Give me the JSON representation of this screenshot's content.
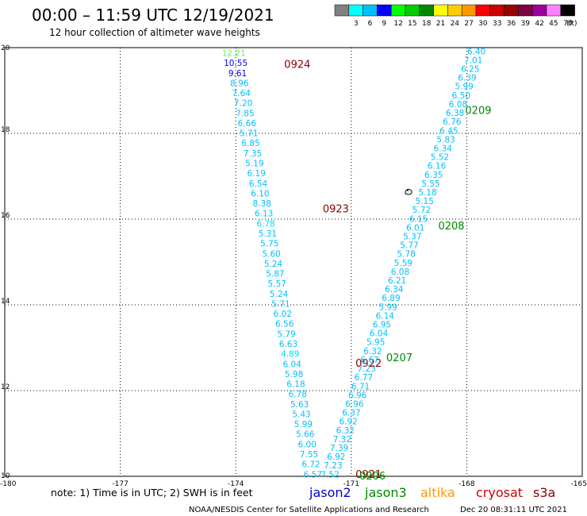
{
  "title": "00:00 – 11:59 UTC 12/19/2021",
  "subtitle": "12 hour collection of altimeter wave heights",
  "legend": {
    "unit": "(ft)",
    "bins": [
      {
        "label": "",
        "color": "#808080"
      },
      {
        "label": "3",
        "color": "#00ffff"
      },
      {
        "label": "6",
        "color": "#00c0ff"
      },
      {
        "label": "9",
        "color": "#0000ff"
      },
      {
        "label": "12",
        "color": "#00ff00"
      },
      {
        "label": "15",
        "color": "#00cc00"
      },
      {
        "label": "18",
        "color": "#008800"
      },
      {
        "label": "21",
        "color": "#ffff00"
      },
      {
        "label": "24",
        "color": "#ffcc00"
      },
      {
        "label": "27",
        "color": "#ff9900"
      },
      {
        "label": "30",
        "color": "#ff0000"
      },
      {
        "label": "33",
        "color": "#cc0000"
      },
      {
        "label": "36",
        "color": "#990000"
      },
      {
        "label": "39",
        "color": "#800040"
      },
      {
        "label": "42",
        "color": "#a000a0"
      },
      {
        "label": "45",
        "color": "#ff80ff"
      },
      {
        "label": "70",
        "color": "#000000"
      }
    ]
  },
  "footer": {
    "note": "note:  1) Time is in UTC;  2) SWH is in feet",
    "satellites": [
      {
        "name": "jason2",
        "color": "#0000cc"
      },
      {
        "name": "jason3",
        "color": "#008800"
      },
      {
        "name": "altika",
        "color": "#ff9900"
      },
      {
        "name": "cryosat",
        "color": "#cc0000"
      },
      {
        "name": "s3a",
        "color": "#880000"
      }
    ],
    "credit": "NOAA/NESDIS Center for Satellite Applications and Research",
    "timestamp": "Dec 20 08:31:11 UTC 2021"
  },
  "chart_data": {
    "type": "scatter",
    "xlim": [
      -180,
      -165
    ],
    "ylim": [
      10,
      20
    ],
    "x_ticks": [
      "-180",
      "-177",
      "-174",
      "-171",
      "-168",
      "-165"
    ],
    "y_ticks": [
      "10",
      "12",
      "14",
      "16",
      "18",
      "20"
    ],
    "grid": true,
    "tracks": [
      {
        "satellite": "cryosat",
        "start": [
          -174.05,
          19.88
        ],
        "end": [
          -172.0,
          10.05
        ],
        "time_labels": [
          {
            "text": "0924",
            "x": -172.4,
            "y": 19.62,
            "color": "#880000"
          },
          {
            "text": "0923",
            "x": -171.4,
            "y": 16.25,
            "color": "#880000"
          },
          {
            "text": "0922",
            "x": -170.55,
            "y": 12.65,
            "color": "#880000"
          },
          {
            "text": "0921",
            "x": -170.55,
            "y": 10.06,
            "color": "#880000"
          }
        ],
        "values": [
          "12.21",
          "10.55",
          "9.61",
          "8.96",
          "7.64",
          "7.20",
          "7.85",
          "6.66",
          "5.71",
          "6.85",
          "7.35",
          "5.19",
          "6.19",
          "6.54",
          "6.10",
          "8.38",
          "6.13",
          "6.78",
          "5.31",
          "5.75",
          "5.60",
          "5.24",
          "5.87",
          "5.57",
          "5.24",
          "5.71",
          "6.02",
          "6.56",
          "5.79",
          "6.63",
          "4.89",
          "6.04",
          "5.98",
          "6.18",
          "6.78",
          "5.63",
          "5.43",
          "5.99",
          "5.66",
          "6.00",
          "7.55",
          "6.72",
          "6.57"
        ],
        "colors": [
          "#66ee66",
          "#0000ff",
          "#0000ff",
          "#00c0ff",
          "#00c0ff",
          "#00c0ff",
          "#00c0ff",
          "#00c0ff",
          "#00c0ff",
          "#00c0ff",
          "#00c0ff",
          "#00c0ff",
          "#00c0ff",
          "#00c0ff",
          "#00c0ff",
          "#00c0ff",
          "#00c0ff",
          "#00e0f0",
          "#00c0ff",
          "#00c0ff",
          "#00c0ff",
          "#00c0ff",
          "#00c0ff",
          "#00c0ff",
          "#00c0ff",
          "#00c0ff",
          "#00c0ff",
          "#00c0ff",
          "#00c0ff",
          "#00c0ff",
          "#00e0f0",
          "#00c0ff",
          "#00c0ff",
          "#00c0ff",
          "#00c0ff",
          "#00c0ff",
          "#00c0ff",
          "#00c0ff",
          "#00c0ff",
          "#00c0ff",
          "#00c0ff",
          "#00c0ff",
          "#00c0ff"
        ]
      },
      {
        "satellite": "jason3",
        "start": [
          -167.75,
          19.92
        ],
        "end": [
          -171.55,
          10.05
        ],
        "time_labels": [
          {
            "text": "0209",
            "x": -167.7,
            "y": 18.55,
            "color": "#008800"
          },
          {
            "text": "0208",
            "x": -168.4,
            "y": 15.85,
            "color": "#008800"
          },
          {
            "text": "0207",
            "x": -169.75,
            "y": 12.78,
            "color": "#008800"
          },
          {
            "text": "0206",
            "x": -170.45,
            "y": 10.02,
            "color": "#008800"
          }
        ],
        "values": [
          "6.40",
          "7.01",
          "6.25",
          "6.39",
          "5.99",
          "6.50",
          "6.08",
          "6.38",
          "6.76",
          "6.45",
          "5.83",
          "6.34",
          "5.52",
          "6.16",
          "6.35",
          "5.55",
          "5.18",
          "5.15",
          "5.72",
          "6.15",
          "6.01",
          "5.37",
          "5.77",
          "5.78",
          "5.59",
          "6.08",
          "6.21",
          "6.34",
          "6.89",
          "5.99",
          "6.14",
          "6.95",
          "6.04",
          "5.95",
          "6.32",
          "6.67",
          "7.23",
          "6.77",
          "6.71",
          "6.96",
          "6.96",
          "6.37",
          "6.92",
          "6.32",
          "7.32",
          "7.39",
          "6.92",
          "7.23",
          "7.52"
        ],
        "colors": [
          "#00c0ff",
          "#00c0ff",
          "#00c0ff",
          "#00c0ff",
          "#00c0ff",
          "#00c0ff",
          "#00c0ff",
          "#00c0ff",
          "#00c0ff",
          "#00c0ff",
          "#00c0ff",
          "#00c0ff",
          "#00c0ff",
          "#00c0ff",
          "#00c0ff",
          "#00c0ff",
          "#00c0ff",
          "#00c0ff",
          "#00c0ff",
          "#00c0ff",
          "#00c0ff",
          "#00c0ff",
          "#00c0ff",
          "#00c0ff",
          "#00c0ff",
          "#00c0ff",
          "#00c0ff",
          "#00c0ff",
          "#00c0ff",
          "#00c0ff",
          "#00c0ff",
          "#00c0ff",
          "#00c0ff",
          "#00c0ff",
          "#00c0ff",
          "#00c0ff",
          "#00c0ff",
          "#00c0ff",
          "#00c0ff",
          "#00c0ff",
          "#00c0ff",
          "#00c0ff",
          "#00c0ff",
          "#00c0ff",
          "#00c0ff",
          "#00c0ff",
          "#00c0ff",
          "#00c0ff",
          "#00c0ff"
        ]
      }
    ]
  }
}
